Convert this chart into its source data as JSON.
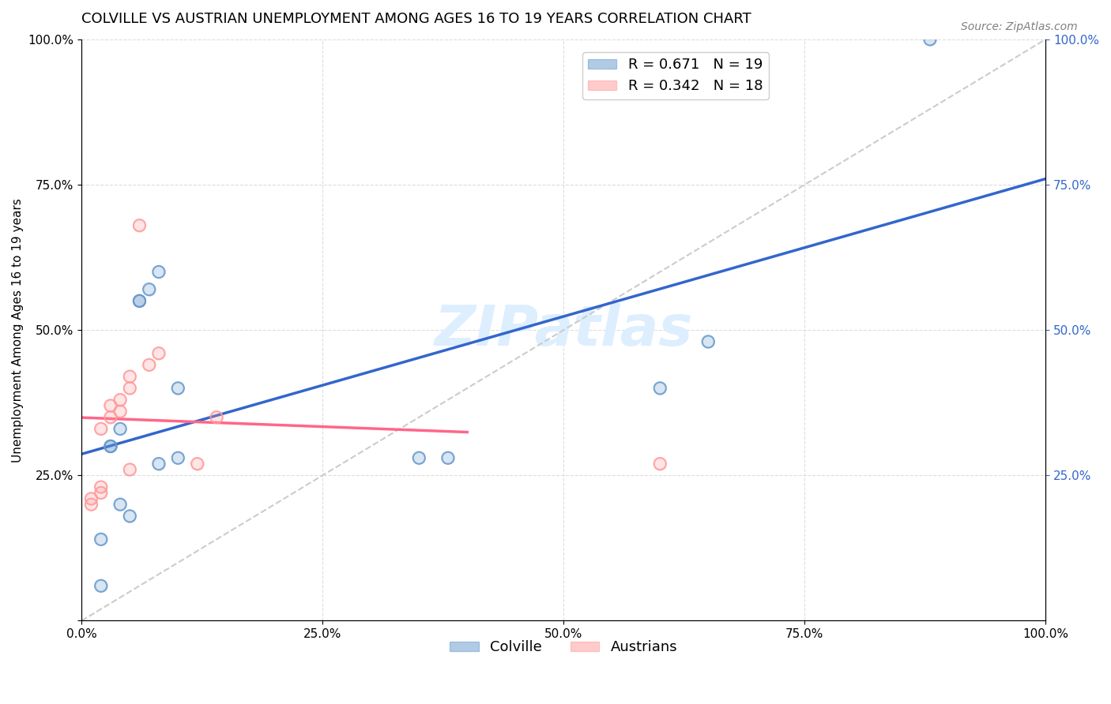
{
  "title": "COLVILLE VS AUSTRIAN UNEMPLOYMENT AMONG AGES 16 TO 19 YEARS CORRELATION CHART",
  "source": "Source: ZipAtlas.com",
  "ylabel": "Unemployment Among Ages 16 to 19 years",
  "xlabel": "",
  "colville_x": [
    0.02,
    0.03,
    0.03,
    0.04,
    0.04,
    0.05,
    0.06,
    0.06,
    0.07,
    0.08,
    0.08,
    0.1,
    0.1,
    0.35,
    0.38,
    0.6,
    0.65,
    0.88,
    0.02
  ],
  "colville_y": [
    0.14,
    0.3,
    0.3,
    0.33,
    0.2,
    0.18,
    0.55,
    0.55,
    0.57,
    0.6,
    0.27,
    0.28,
    0.4,
    0.28,
    0.28,
    0.4,
    0.48,
    1.0,
    0.06
  ],
  "austrians_x": [
    0.01,
    0.01,
    0.02,
    0.02,
    0.02,
    0.03,
    0.03,
    0.04,
    0.04,
    0.05,
    0.05,
    0.05,
    0.06,
    0.07,
    0.08,
    0.12,
    0.14,
    0.6
  ],
  "austrians_y": [
    0.2,
    0.21,
    0.33,
    0.22,
    0.23,
    0.37,
    0.35,
    0.36,
    0.38,
    0.42,
    0.4,
    0.26,
    0.68,
    0.44,
    0.46,
    0.27,
    0.35,
    0.27
  ],
  "colville_color": "#6699CC",
  "austrians_color": "#FF9999",
  "blue_line_color": "#3366CC",
  "pink_line_color": "#FF6688",
  "ref_line_color": "#CCCCCC",
  "R_colville": "0.671",
  "N_colville": "19",
  "R_austrians": "0.342",
  "N_austrians": "18",
  "xlim": [
    0.0,
    1.0
  ],
  "ylim": [
    0.0,
    1.0
  ],
  "grid_color": "#DDDDDD",
  "watermark": "ZIPatlas",
  "watermark_color": "#DDEEFF",
  "title_fontsize": 13,
  "label_fontsize": 11,
  "tick_fontsize": 11,
  "legend_fontsize": 13,
  "marker_size": 120,
  "marker_linewidth": 1.5
}
